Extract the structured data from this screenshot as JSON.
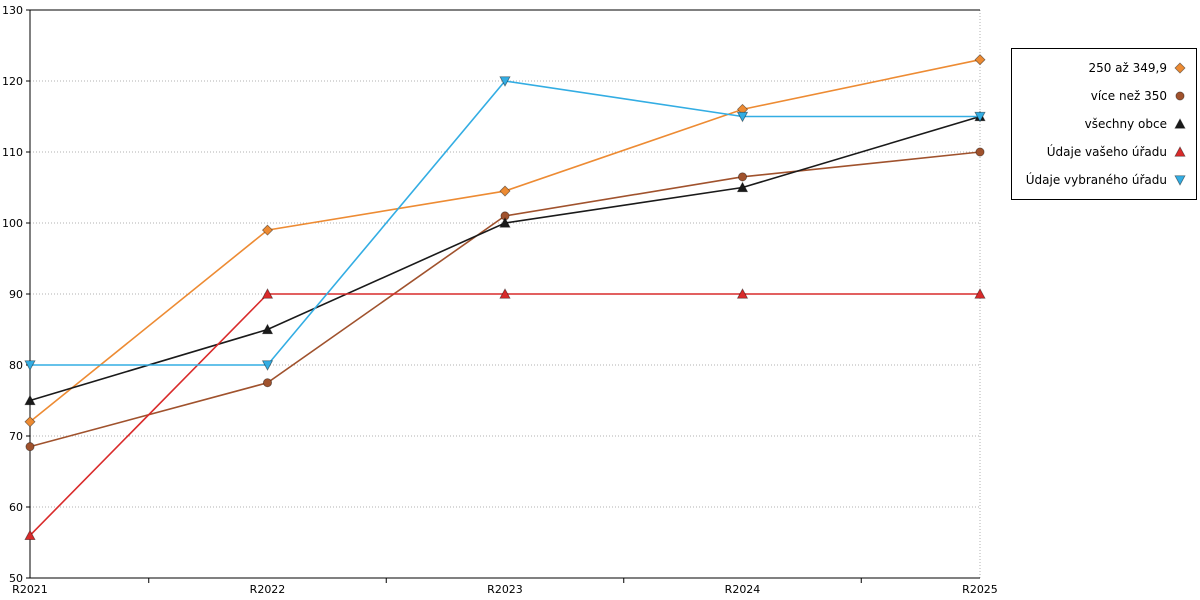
{
  "chart_data": {
    "type": "line",
    "title": "",
    "xlabel": "",
    "ylabel": "",
    "categories": [
      "R2021",
      "R2022",
      "R2023",
      "R2024",
      "R2025"
    ],
    "series": [
      {
        "name": "250 až 349,9",
        "color": "#ED8B33",
        "marker": "diamond",
        "values": [
          72,
          99,
          104.5,
          116,
          123
        ]
      },
      {
        "name": "více než 350",
        "color": "#A0522D",
        "marker": "circle",
        "values": [
          68.5,
          77.5,
          101,
          106.5,
          110
        ]
      },
      {
        "name": "všechny obce",
        "color": "#1A1A1A",
        "marker": "triangle-up",
        "values": [
          75,
          85,
          100,
          105,
          115
        ]
      },
      {
        "name": "Údaje vašeho úřadu",
        "color": "#D92B2B",
        "marker": "triangle-up",
        "values": [
          56,
          90,
          90,
          90,
          90
        ]
      },
      {
        "name": "Údaje vybraného úřadu",
        "color": "#33ADE3",
        "marker": "triangle-down",
        "values": [
          80,
          80,
          120,
          115,
          115
        ]
      }
    ],
    "ylim": [
      50,
      130
    ],
    "ytick_step": 10,
    "y_tick_labels": [
      "50",
      "60",
      "70",
      "80",
      "90",
      "100",
      "110",
      "120",
      "130"
    ],
    "grid": "horizontal-dotted",
    "legend_position": "top-right",
    "frame_color": "#000000",
    "grid_color": "#b0b0b0"
  }
}
